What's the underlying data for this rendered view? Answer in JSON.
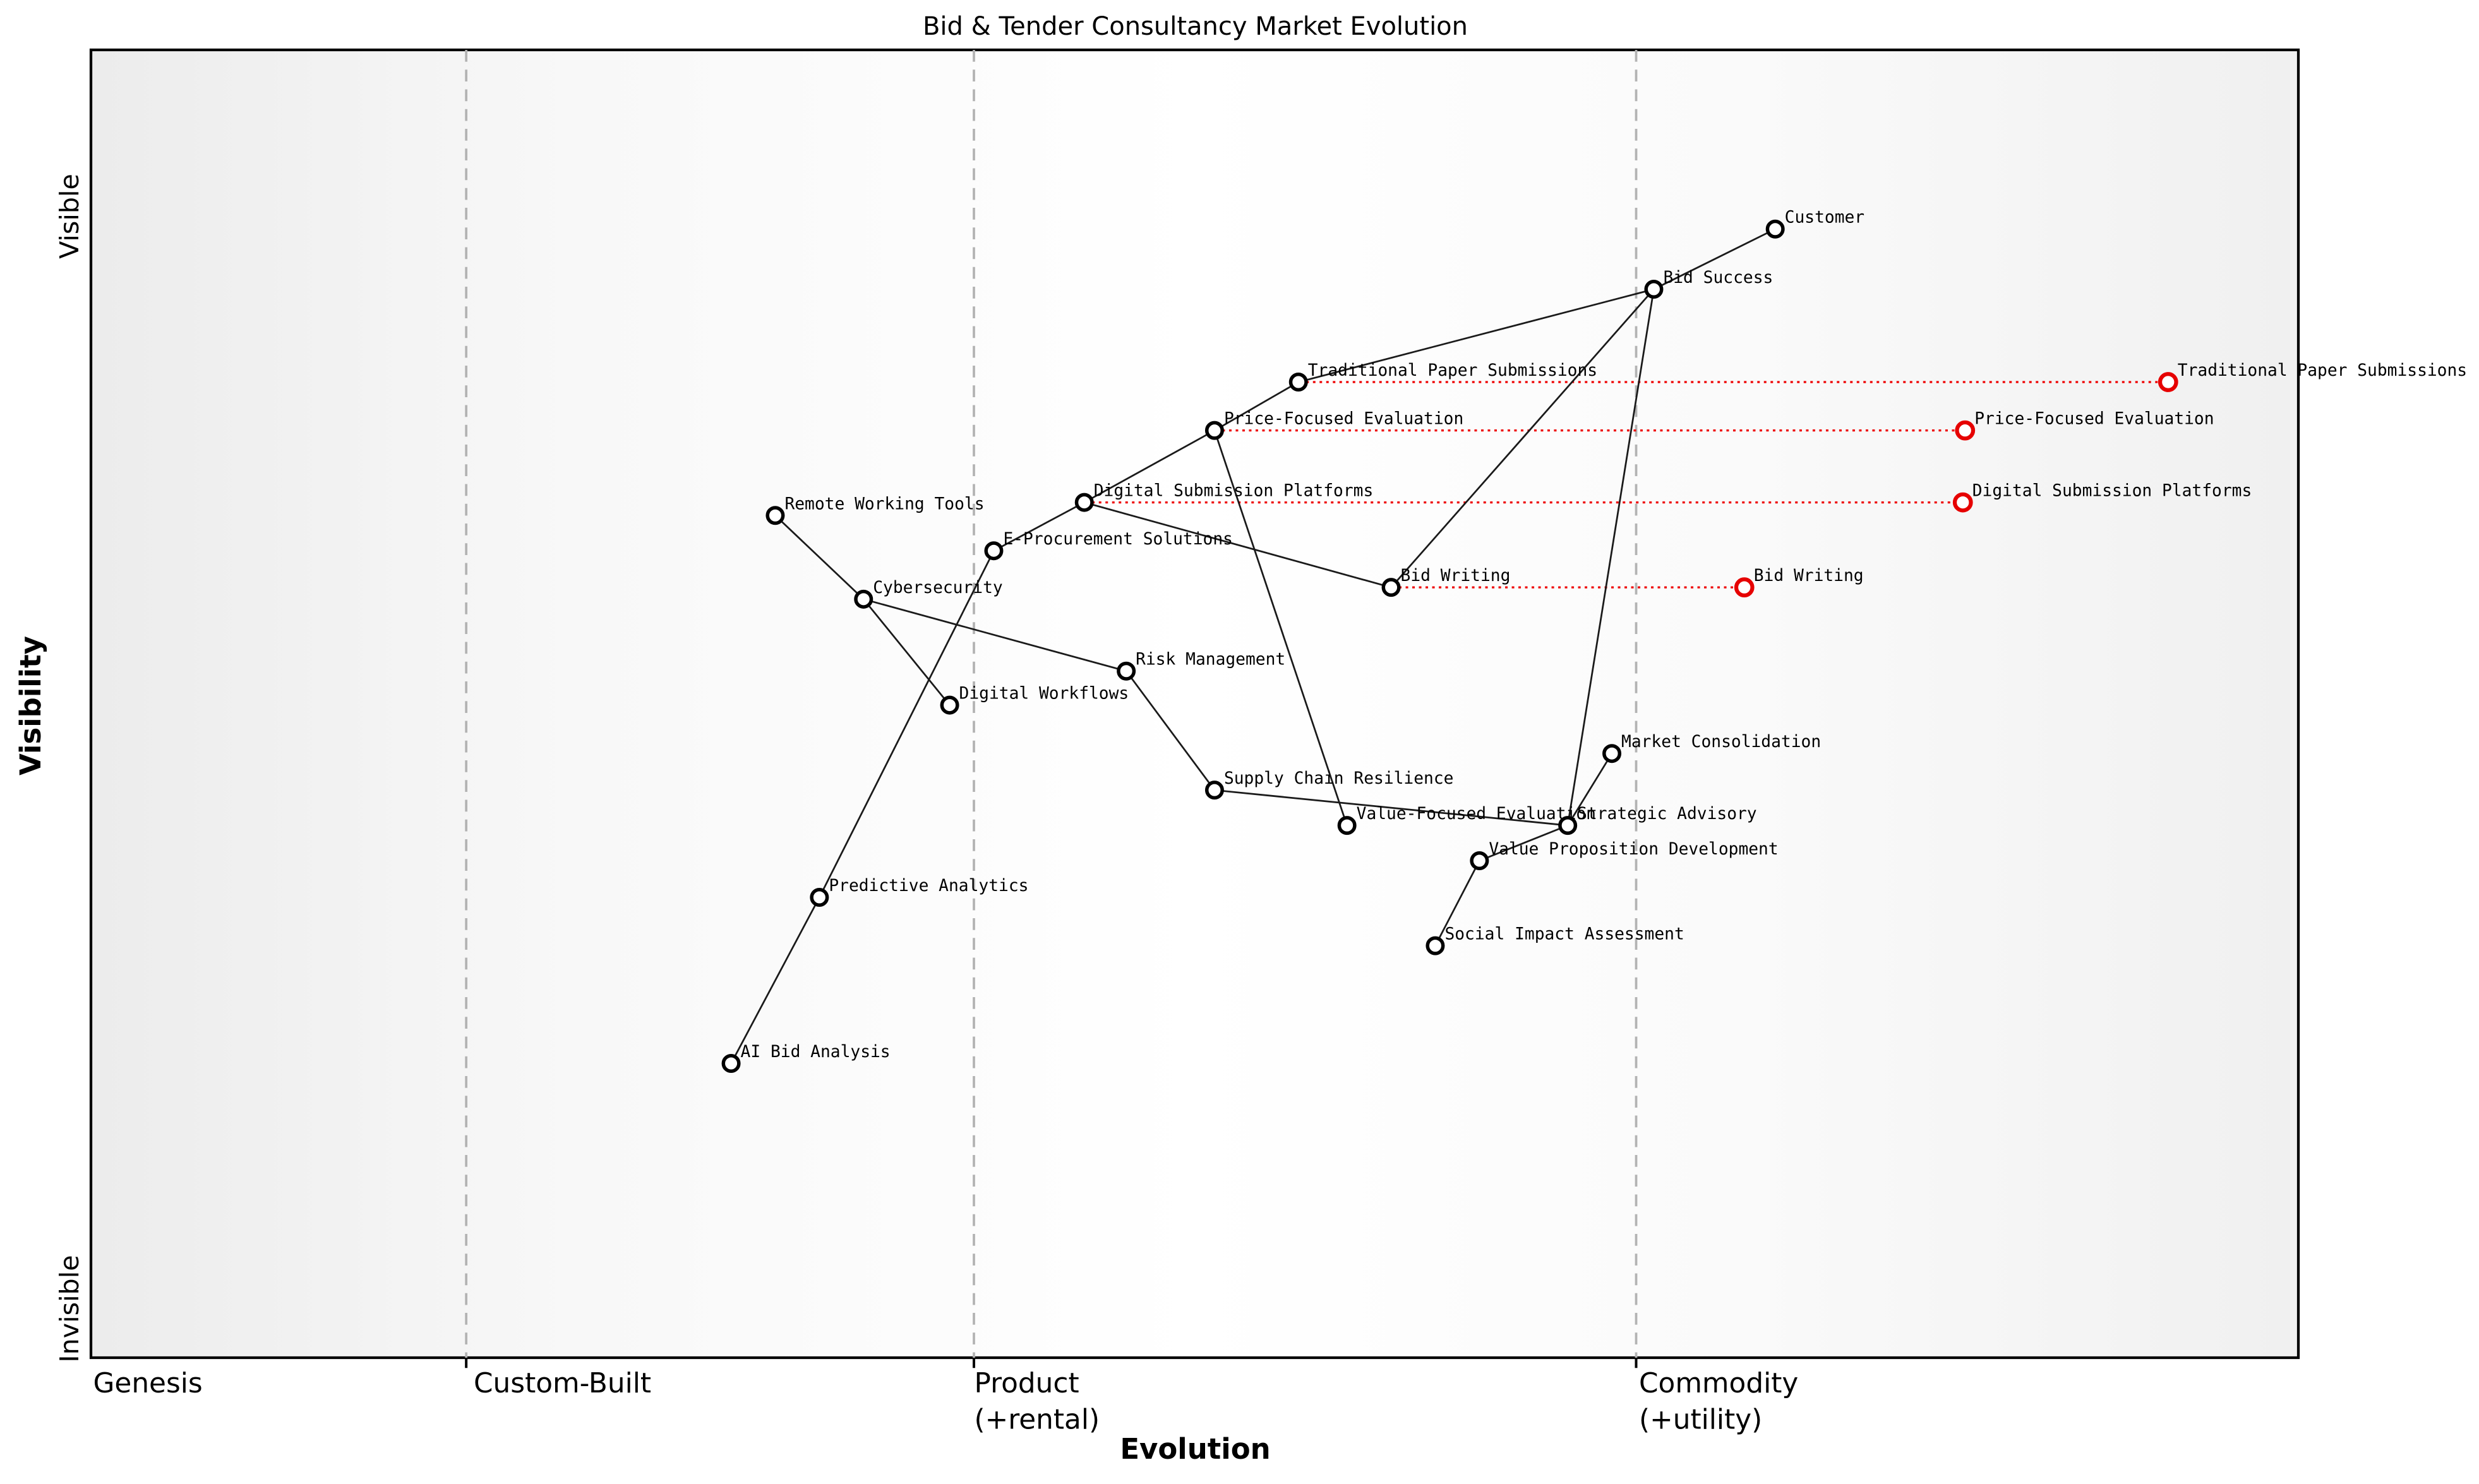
{
  "title": "Bid & Tender Consultancy Market Evolution",
  "axes": {
    "x_label": "Evolution",
    "y_label": "Visibility",
    "y_top": "Visible",
    "y_bottom": "Invisible",
    "stages": [
      {
        "label": "Genesis",
        "sub": ""
      },
      {
        "label": "Custom-Built",
        "sub": ""
      },
      {
        "label": "Product",
        "sub": "(+rental)"
      },
      {
        "label": "Commodity",
        "sub": "(+utility)"
      }
    ]
  },
  "colors": {
    "node_stroke": "#000000",
    "node_fill": "#ffffff",
    "evolved_stroke": "#e60000",
    "evolution_link": "#ee0000",
    "edge": "#1a1a1a",
    "gridline": "#b3b3b3",
    "border": "#000000",
    "bg_left": "#ececec",
    "bg_mid": "#ffffff",
    "bg_right": "#f0f0f0"
  },
  "chart_data": {
    "type": "scatter",
    "variant": "wardley-map",
    "title": "Bid & Tender Consultancy Market Evolution",
    "xlabel": "Evolution",
    "ylabel": "Visibility",
    "x_range": [
      0,
      1
    ],
    "y_range": [
      0,
      1
    ],
    "grid": "stage-boundaries-only",
    "stage_boundaries": [
      0.17,
      0.4,
      0.7
    ],
    "nodes": [
      {
        "id": "customer",
        "label": "Customer",
        "evolution": 0.763,
        "visibility": 0.863
      },
      {
        "id": "bid-success",
        "label": "Bid Success",
        "evolution": 0.708,
        "visibility": 0.817
      },
      {
        "id": "traditional-paper-submissions",
        "label": "Traditional Paper Submissions",
        "evolution": 0.547,
        "visibility": 0.746
      },
      {
        "id": "price-focused-evaluation",
        "label": "Price-Focused Evaluation",
        "evolution": 0.509,
        "visibility": 0.709
      },
      {
        "id": "digital-submission-platforms",
        "label": "Digital Submission Platforms",
        "evolution": 0.45,
        "visibility": 0.654
      },
      {
        "id": "e-procurement-solutions",
        "label": "E-Procurement Solutions",
        "evolution": 0.409,
        "visibility": 0.617
      },
      {
        "id": "remote-working-tools",
        "label": "Remote Working Tools",
        "evolution": 0.31,
        "visibility": 0.644
      },
      {
        "id": "cybersecurity",
        "label": "Cybersecurity",
        "evolution": 0.35,
        "visibility": 0.58
      },
      {
        "id": "bid-writing",
        "label": "Bid Writing",
        "evolution": 0.589,
        "visibility": 0.589
      },
      {
        "id": "risk-management",
        "label": "Risk Management",
        "evolution": 0.469,
        "visibility": 0.525
      },
      {
        "id": "digital-workflows",
        "label": "Digital Workflows",
        "evolution": 0.389,
        "visibility": 0.499
      },
      {
        "id": "market-consolidation",
        "label": "Market Consolidation",
        "evolution": 0.689,
        "visibility": 0.462
      },
      {
        "id": "supply-chain-resilience",
        "label": "Supply Chain Resilience",
        "evolution": 0.509,
        "visibility": 0.434
      },
      {
        "id": "value-focused-evaluation",
        "label": "Value-Focused Evaluation",
        "evolution": 0.569,
        "visibility": 0.407
      },
      {
        "id": "strategic-advisory",
        "label": "Strategic Advisory",
        "evolution": 0.669,
        "visibility": 0.407
      },
      {
        "id": "value-proposition-development",
        "label": "Value Proposition Development",
        "evolution": 0.629,
        "visibility": 0.38
      },
      {
        "id": "social-impact-assessment",
        "label": "Social Impact Assessment",
        "evolution": 0.609,
        "visibility": 0.315
      },
      {
        "id": "predictive-analytics",
        "label": "Predictive Analytics",
        "evolution": 0.33,
        "visibility": 0.352
      },
      {
        "id": "ai-bid-analysis",
        "label": "AI Bid Analysis",
        "evolution": 0.29,
        "visibility": 0.225
      }
    ],
    "edges": [
      [
        "customer",
        "bid-success"
      ],
      [
        "bid-success",
        "traditional-paper-submissions"
      ],
      [
        "traditional-paper-submissions",
        "price-focused-evaluation"
      ],
      [
        "price-focused-evaluation",
        "digital-submission-platforms"
      ],
      [
        "digital-submission-platforms",
        "e-procurement-solutions"
      ],
      [
        "digital-submission-platforms",
        "bid-writing"
      ],
      [
        "bid-writing",
        "bid-success"
      ],
      [
        "bid-success",
        "strategic-advisory"
      ],
      [
        "price-focused-evaluation",
        "value-focused-evaluation"
      ],
      [
        "supply-chain-resilience",
        "strategic-advisory"
      ],
      [
        "risk-management",
        "supply-chain-resilience"
      ],
      [
        "cybersecurity",
        "risk-management"
      ],
      [
        "remote-working-tools",
        "cybersecurity"
      ],
      [
        "cybersecurity",
        "digital-workflows"
      ],
      [
        "e-procurement-solutions",
        "predictive-analytics"
      ],
      [
        "predictive-analytics",
        "ai-bid-analysis"
      ],
      [
        "strategic-advisory",
        "market-consolidation"
      ],
      [
        "strategic-advisory",
        "value-proposition-development"
      ],
      [
        "value-proposition-development",
        "social-impact-assessment"
      ]
    ],
    "evolved": [
      {
        "node": "traditional-paper-submissions",
        "evolution": 0.941
      },
      {
        "node": "price-focused-evaluation",
        "evolution": 0.849
      },
      {
        "node": "digital-submission-platforms",
        "evolution": 0.848
      },
      {
        "node": "bid-writing",
        "evolution": 0.749
      }
    ],
    "legend": "none"
  }
}
